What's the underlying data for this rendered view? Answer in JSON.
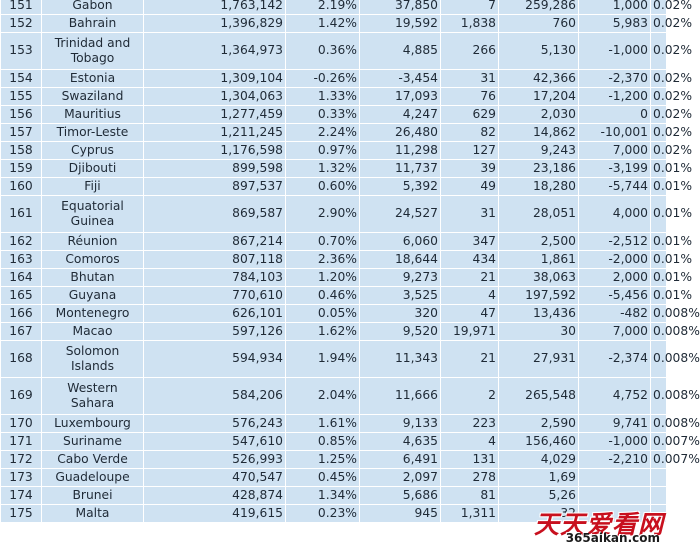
{
  "table": {
    "rows": [
      {
        "rank": "151",
        "country": "Gabon",
        "population": "1,763,142",
        "yearly_change": "2.19%",
        "net_change": "37,850",
        "density": "7",
        "land_area": "259,286",
        "migrants": "1,000",
        "world_share": "0.02%"
      },
      {
        "rank": "152",
        "country": "Bahrain",
        "population": "1,396,829",
        "yearly_change": "1.42%",
        "net_change": "19,592",
        "density": "1,838",
        "land_area": "760",
        "migrants": "5,983",
        "world_share": "0.02%"
      },
      {
        "rank": "153",
        "country": "Trinidad and Tobago",
        "population": "1,364,973",
        "yearly_change": "0.36%",
        "net_change": "4,885",
        "density": "266",
        "land_area": "5,130",
        "migrants": "-1,000",
        "world_share": "0.02%"
      },
      {
        "rank": "154",
        "country": "Estonia",
        "population": "1,309,104",
        "yearly_change": "-0.26%",
        "net_change": "-3,454",
        "density": "31",
        "land_area": "42,366",
        "migrants": "-2,370",
        "world_share": "0.02%"
      },
      {
        "rank": "155",
        "country": "Swaziland",
        "population": "1,304,063",
        "yearly_change": "1.33%",
        "net_change": "17,093",
        "density": "76",
        "land_area": "17,204",
        "migrants": "-1,200",
        "world_share": "0.02%"
      },
      {
        "rank": "156",
        "country": "Mauritius",
        "population": "1,277,459",
        "yearly_change": "0.33%",
        "net_change": "4,247",
        "density": "629",
        "land_area": "2,030",
        "migrants": "0",
        "world_share": "0.02%"
      },
      {
        "rank": "157",
        "country": "Timor-Leste",
        "population": "1,211,245",
        "yearly_change": "2.24%",
        "net_change": "26,480",
        "density": "82",
        "land_area": "14,862",
        "migrants": "-10,001",
        "world_share": "0.02%"
      },
      {
        "rank": "158",
        "country": "Cyprus",
        "population": "1,176,598",
        "yearly_change": "0.97%",
        "net_change": "11,298",
        "density": "127",
        "land_area": "9,243",
        "migrants": "7,000",
        "world_share": "0.02%"
      },
      {
        "rank": "159",
        "country": "Djibouti",
        "population": "899,598",
        "yearly_change": "1.32%",
        "net_change": "11,737",
        "density": "39",
        "land_area": "23,186",
        "migrants": "-3,199",
        "world_share": "0.01%"
      },
      {
        "rank": "160",
        "country": "Fiji",
        "population": "897,537",
        "yearly_change": "0.60%",
        "net_change": "5,392",
        "density": "49",
        "land_area": "18,280",
        "migrants": "-5,744",
        "world_share": "0.01%"
      },
      {
        "rank": "161",
        "country": "Equatorial Guinea",
        "population": "869,587",
        "yearly_change": "2.90%",
        "net_change": "24,527",
        "density": "31",
        "land_area": "28,051",
        "migrants": "4,000",
        "world_share": "0.01%"
      },
      {
        "rank": "162",
        "country": "Réunion",
        "population": "867,214",
        "yearly_change": "0.70%",
        "net_change": "6,060",
        "density": "347",
        "land_area": "2,500",
        "migrants": "-2,512",
        "world_share": "0.01%"
      },
      {
        "rank": "163",
        "country": "Comoros",
        "population": "807,118",
        "yearly_change": "2.36%",
        "net_change": "18,644",
        "density": "434",
        "land_area": "1,861",
        "migrants": "-2,000",
        "world_share": "0.01%"
      },
      {
        "rank": "164",
        "country": "Bhutan",
        "population": "784,103",
        "yearly_change": "1.20%",
        "net_change": "9,273",
        "density": "21",
        "land_area": "38,063",
        "migrants": "2,000",
        "world_share": "0.01%"
      },
      {
        "rank": "165",
        "country": "Guyana",
        "population": "770,610",
        "yearly_change": "0.46%",
        "net_change": "3,525",
        "density": "4",
        "land_area": "197,592",
        "migrants": "-5,456",
        "world_share": "0.01%"
      },
      {
        "rank": "166",
        "country": "Montenegro",
        "population": "626,101",
        "yearly_change": "0.05%",
        "net_change": "320",
        "density": "47",
        "land_area": "13,436",
        "migrants": "-482",
        "world_share": "0.008%"
      },
      {
        "rank": "167",
        "country": "Macao",
        "population": "597,126",
        "yearly_change": "1.62%",
        "net_change": "9,520",
        "density": "19,971",
        "land_area": "30",
        "migrants": "7,000",
        "world_share": "0.008%"
      },
      {
        "rank": "168",
        "country": "Solomon Islands",
        "population": "594,934",
        "yearly_change": "1.94%",
        "net_change": "11,343",
        "density": "21",
        "land_area": "27,931",
        "migrants": "-2,374",
        "world_share": "0.008%"
      },
      {
        "rank": "169",
        "country": "Western Sahara",
        "population": "584,206",
        "yearly_change": "2.04%",
        "net_change": "11,666",
        "density": "2",
        "land_area": "265,548",
        "migrants": "4,752",
        "world_share": "0.008%"
      },
      {
        "rank": "170",
        "country": "Luxembourg",
        "population": "576,243",
        "yearly_change": "1.61%",
        "net_change": "9,133",
        "density": "223",
        "land_area": "2,590",
        "migrants": "9,741",
        "world_share": "0.008%"
      },
      {
        "rank": "171",
        "country": "Suriname",
        "population": "547,610",
        "yearly_change": "0.85%",
        "net_change": "4,635",
        "density": "4",
        "land_area": "156,460",
        "migrants": "-1,000",
        "world_share": "0.007%"
      },
      {
        "rank": "172",
        "country": "Cabo Verde",
        "population": "526,993",
        "yearly_change": "1.25%",
        "net_change": "6,491",
        "density": "131",
        "land_area": "4,029",
        "migrants": "-2,210",
        "world_share": "0.007%"
      },
      {
        "rank": "173",
        "country": "Guadeloupe",
        "population": "470,547",
        "yearly_change": "0.45%",
        "net_change": "2,097",
        "density": "278",
        "land_area": "1,69",
        "migrants": "",
        "world_share": ""
      },
      {
        "rank": "174",
        "country": "Brunei",
        "population": "428,874",
        "yearly_change": "1.34%",
        "net_change": "5,686",
        "density": "81",
        "land_area": "5,26",
        "migrants": "",
        "world_share": ""
      },
      {
        "rank": "175",
        "country": "Malta",
        "population": "419,615",
        "yearly_change": "0.23%",
        "net_change": "945",
        "density": "1,311",
        "land_area": "32",
        "migrants": "",
        "world_share": ""
      }
    ],
    "tall_rows": [
      2,
      10,
      17,
      18
    ]
  },
  "watermark": {
    "line1": "天天爱看网",
    "line2": "365aikan.com"
  },
  "colors": {
    "cell_background": "#cfe2f2",
    "grid_lines": "#ffffff",
    "text": "#1f2a36",
    "watermark_red": "#c8101e"
  }
}
